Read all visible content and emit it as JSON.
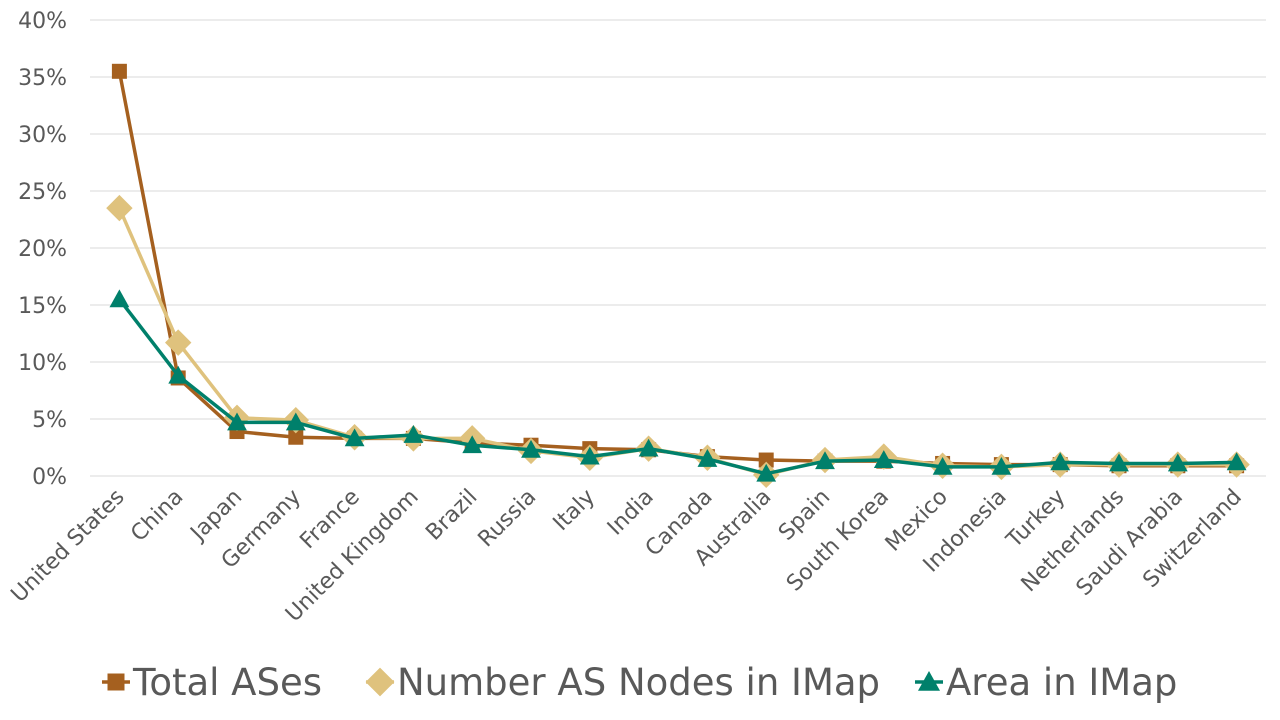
{
  "chart_data": {
    "type": "line",
    "title": "",
    "xlabel": "",
    "ylabel": "",
    "categories": [
      "United States",
      "China",
      "Japan",
      "Germany",
      "France",
      "United Kingdom",
      "Brazil",
      "Russia",
      "Italy",
      "India",
      "Canada",
      "Australia",
      "Spain",
      "South Korea",
      "Mexico",
      "Indonesia",
      "Turkey",
      "Netherlands",
      "Saudi Arabia",
      "Switzerland"
    ],
    "ylim": [
      0,
      40
    ],
    "yticks": [
      {
        "value": 0,
        "label": "0%"
      },
      {
        "value": 5,
        "label": "5%"
      },
      {
        "value": 10,
        "label": "10%"
      },
      {
        "value": 15,
        "label": "15%"
      },
      {
        "value": 20,
        "label": "20%"
      },
      {
        "value": 25,
        "label": "25%"
      },
      {
        "value": 30,
        "label": "30%"
      },
      {
        "value": 35,
        "label": "35%"
      },
      {
        "value": 40,
        "label": "40%"
      }
    ],
    "grid": true,
    "legend_position": "bottom",
    "series": [
      {
        "name": "Total ASes",
        "color": "#a5601f",
        "marker": "square",
        "values": [
          35.5,
          8.6,
          3.9,
          3.4,
          3.3,
          3.3,
          2.9,
          2.7,
          2.4,
          2.3,
          1.7,
          1.4,
          1.3,
          1.3,
          1.1,
          1.0,
          1.0,
          0.9,
          0.9,
          0.9
        ]
      },
      {
        "name": "Number AS Nodes in IMap",
        "color": "#dfc27d",
        "marker": "diamond",
        "values": [
          23.5,
          11.7,
          5.1,
          4.9,
          3.4,
          3.3,
          3.3,
          2.2,
          1.6,
          2.4,
          1.6,
          0.1,
          1.4,
          1.7,
          0.9,
          0.8,
          1.0,
          1.0,
          1.0,
          1.0
        ]
      },
      {
        "name": "Area in IMap",
        "color": "#00806b",
        "marker": "triangle",
        "values": [
          15.5,
          8.8,
          4.7,
          4.7,
          3.3,
          3.6,
          2.7,
          2.3,
          1.7,
          2.4,
          1.5,
          0.2,
          1.3,
          1.4,
          0.8,
          0.8,
          1.2,
          1.1,
          1.1,
          1.2
        ]
      }
    ]
  }
}
